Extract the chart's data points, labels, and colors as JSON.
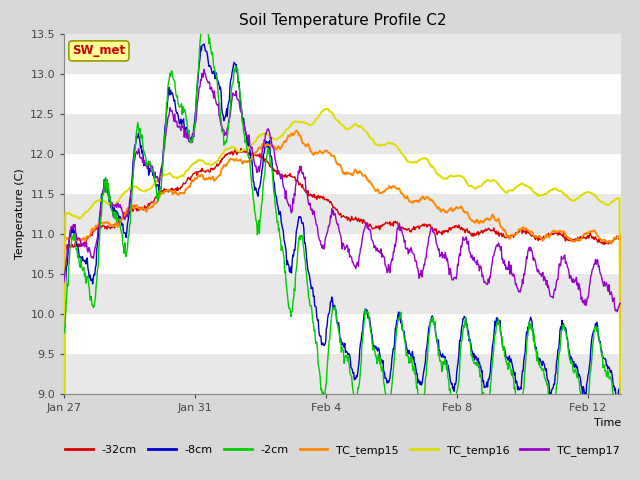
{
  "title": "Soil Temperature Profile C2",
  "xlabel": "Time",
  "ylabel": "Temperature (C)",
  "ylim": [
    9.0,
    13.5
  ],
  "yticks": [
    9.0,
    9.5,
    10.0,
    10.5,
    11.0,
    11.5,
    12.0,
    12.5,
    13.0,
    13.5
  ],
  "colors": {
    "32cm": "#dd0000",
    "8cm": "#0000cc",
    "2cm": "#00cc00",
    "TC_temp15": "#ff8800",
    "TC_temp16": "#dddd00",
    "TC_temp17": "#9900cc"
  },
  "annotation_text": "SW_met",
  "annotation_color": "#cc0000",
  "annotation_bg": "#ffff99",
  "annotation_edge": "#999900",
  "background_color": "#d8d8d8",
  "stripe_color": "#e8e8e8",
  "xtick_labels": [
    "Jan 27",
    "Jan 31",
    "Feb 4",
    "Feb 8",
    "Feb 12"
  ],
  "xtick_days": [
    0,
    4,
    8,
    12,
    16
  ],
  "figsize": [
    6.4,
    4.8
  ],
  "dpi": 100
}
